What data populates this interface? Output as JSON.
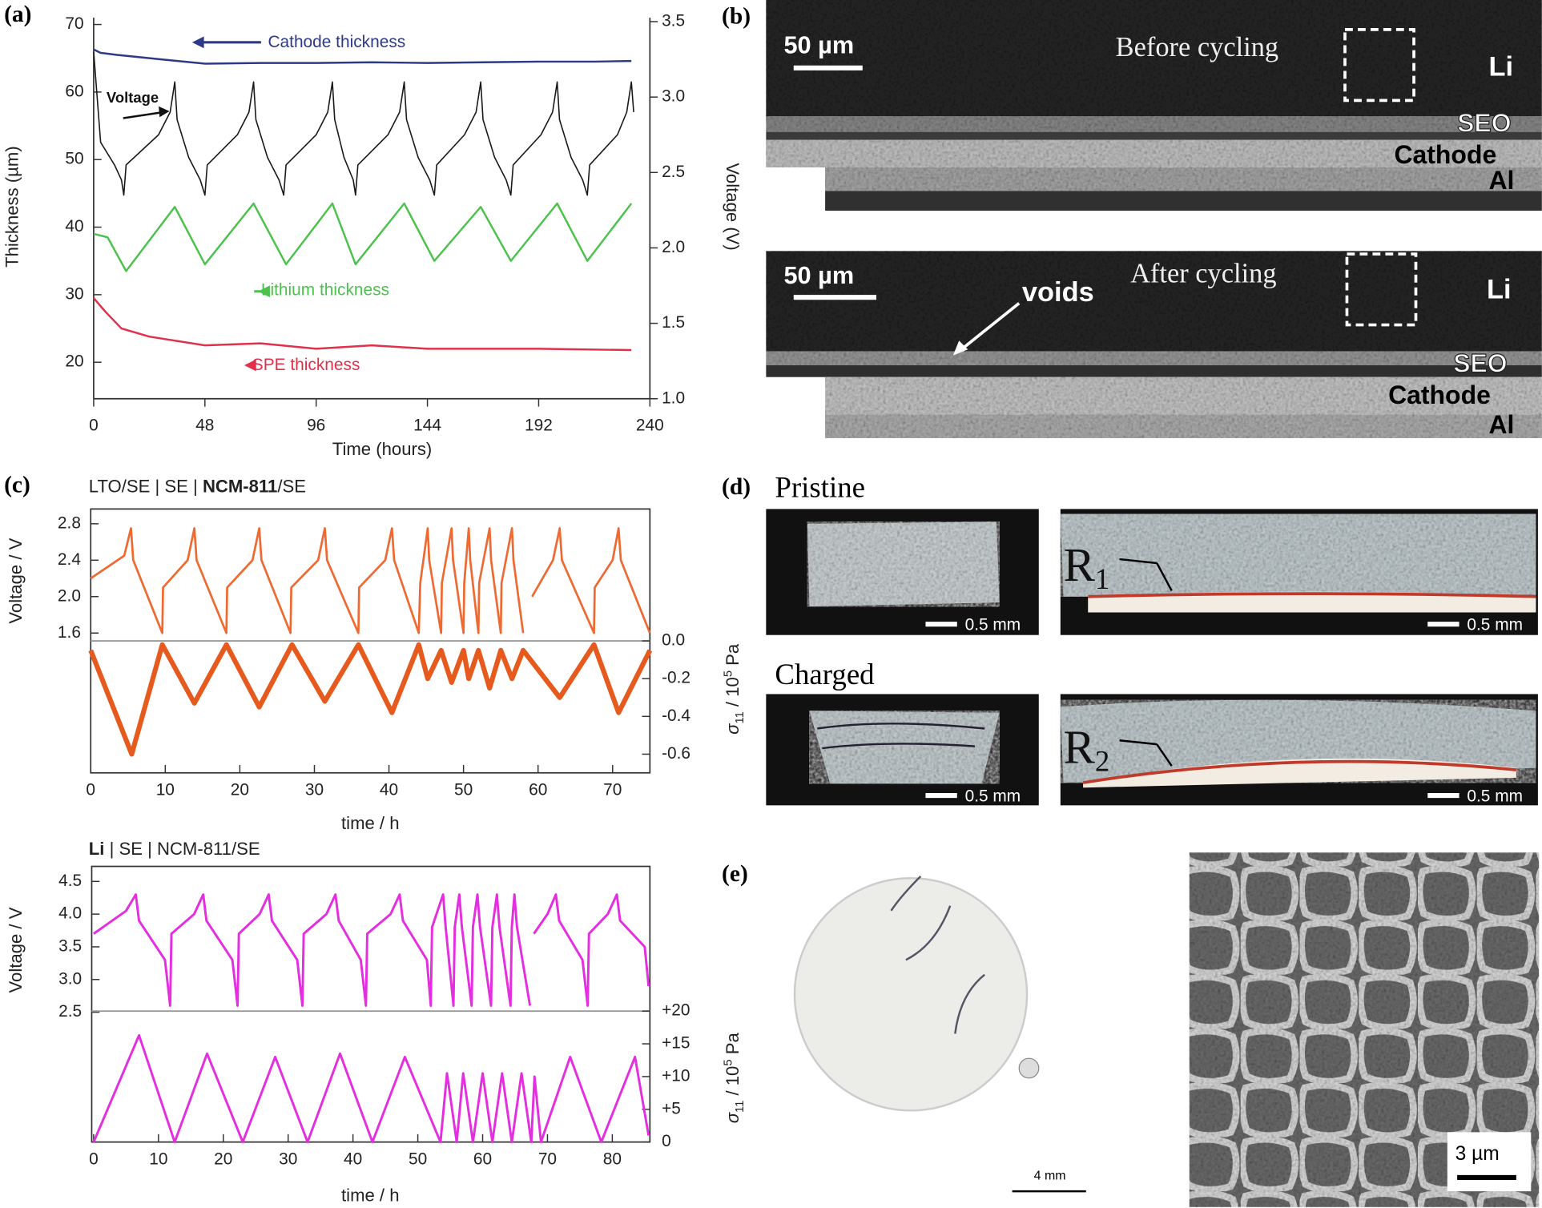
{
  "chart_data": [
    {
      "type": "line",
      "xlabel": "Time (hours)",
      "ylabel": "Thickness (µm)",
      "y2label": "Voltage (V)",
      "xlim": [
        0,
        240
      ],
      "xticks": [
        0,
        48,
        96,
        144,
        192,
        240
      ],
      "ylim": [
        14.6,
        71.0
      ],
      "yticks": [
        20,
        30,
        40,
        50,
        60,
        70
      ],
      "y2lim": [
        1.0,
        3.526
      ],
      "y2ticks": [
        {
          "value": 1.0,
          "label": "1.0"
        },
        1.5,
        {
          "value": 2.0,
          "label": "2.0"
        },
        2.5,
        {
          "value": 3.0,
          "label": "3.0"
        },
        3.5
      ],
      "series": [
        {
          "name": "Cathode thickness",
          "color": "#2e3a87",
          "x": [
            0,
            3,
            10,
            30,
            48,
            72,
            96,
            120,
            144,
            168,
            192,
            216,
            232
          ],
          "values": [
            66.3,
            65.8,
            65.5,
            64.8,
            64.2,
            64.3,
            64.3,
            64.4,
            64.3,
            64.4,
            64.5,
            64.5,
            64.6
          ]
        },
        {
          "name": "Voltage",
          "color": "#1a1a1a",
          "axis": "y2",
          "x": [
            0,
            3,
            9,
            12,
            13,
            14,
            28,
            33,
            35,
            36,
            41,
            46,
            48,
            49,
            62,
            67,
            69,
            70,
            75,
            80,
            82,
            83,
            96,
            101,
            103,
            104,
            108,
            112,
            113,
            114,
            127,
            132,
            134,
            135,
            140,
            145,
            147,
            148,
            160,
            165,
            167,
            168,
            173,
            178,
            180,
            181,
            193,
            198,
            200,
            201,
            206,
            211,
            213,
            214,
            226,
            230,
            232,
            233
          ],
          "values": [
            3.3,
            2.7,
            2.55,
            2.45,
            2.35,
            2.55,
            2.75,
            2.9,
            3.1,
            2.85,
            2.6,
            2.45,
            2.35,
            2.55,
            2.75,
            2.9,
            3.1,
            2.85,
            2.6,
            2.45,
            2.35,
            2.55,
            2.75,
            2.9,
            3.1,
            2.85,
            2.6,
            2.45,
            2.35,
            2.55,
            2.75,
            2.9,
            3.1,
            2.85,
            2.6,
            2.45,
            2.35,
            2.55,
            2.75,
            2.9,
            3.1,
            2.85,
            2.6,
            2.45,
            2.35,
            2.55,
            2.75,
            2.9,
            3.1,
            2.85,
            2.6,
            2.45,
            2.35,
            2.55,
            2.75,
            2.9,
            3.1,
            2.9
          ]
        },
        {
          "name": "Lithium thickness",
          "color": "#4cc24c",
          "x": [
            0,
            6,
            14,
            35,
            48,
            69,
            83,
            103,
            113,
            134,
            147,
            167,
            180,
            200,
            213,
            232
          ],
          "values": [
            39,
            38.5,
            33.5,
            43,
            34.5,
            43.5,
            34.5,
            43.5,
            34.5,
            43.5,
            35,
            43,
            35,
            43.5,
            35,
            43.5
          ]
        },
        {
          "name": "SPE thickness",
          "color": "#e0304a",
          "x": [
            0,
            5,
            12,
            24,
            48,
            72,
            96,
            120,
            144,
            192,
            232
          ],
          "values": [
            29.5,
            27.5,
            25,
            23.8,
            22.5,
            22.8,
            22,
            22.5,
            22,
            22,
            21.8
          ]
        }
      ]
    },
    {
      "type": "line",
      "title_parts": [
        "LTO/SE | SE | ",
        "NCM-811",
        "/SE"
      ],
      "xlabel": "time / h",
      "ylabel": "Voltage / V",
      "y2label_parts": [
        "σ",
        "11",
        " / 10",
        "5",
        " Pa"
      ],
      "xlim": [
        0,
        75.0
      ],
      "xticks": [
        0,
        10,
        20,
        30,
        40,
        50,
        60,
        70
      ],
      "ylim": [
        0.065,
        2.962
      ],
      "yticks": [
        1.6,
        {
          "value": 2.0,
          "label": "2.0"
        },
        2.4,
        2.8
      ],
      "y2lim": [
        -0.699,
        0.699
      ],
      "y2ticks": [
        {
          "value": 0,
          "label": "0.0"
        },
        -0.2,
        -0.4,
        -0.6
      ],
      "series": [
        {
          "color": "#ef6a32",
          "x": [
            0,
            4.5,
            5.4,
            5.7,
            9.6,
            9.7,
            13,
            13.9,
            14.2,
            18.2,
            18.3,
            21.7,
            22.6,
            22.9,
            26.8,
            26.9,
            30.5,
            31.4,
            31.7,
            35.9,
            36,
            39.5,
            40.4,
            40.7,
            44,
            44.2,
            45.2,
            45.4,
            47,
            47.1,
            48.4,
            48.6,
            50,
            50.1,
            50.7,
            50.9,
            52,
            52.1,
            53.5,
            53.7,
            55,
            55.1,
            56.5,
            56.7,
            58,
            58.5,
            59.2,
            62,
            62.9,
            63.2,
            67.5,
            67.6,
            70,
            70.8,
            71.1,
            75
          ],
          "values": [
            2.2,
            2.45,
            2.75,
            2.4,
            1.6,
            2.1,
            2.4,
            2.75,
            2.4,
            1.6,
            2.1,
            2.4,
            2.75,
            2.4,
            1.6,
            2.1,
            2.4,
            2.75,
            2.4,
            1.6,
            2.1,
            2.4,
            2.75,
            2.4,
            1.6,
            2.15,
            2.75,
            2.4,
            1.6,
            2.15,
            2.75,
            2.4,
            1.6,
            2.15,
            2.75,
            2.4,
            1.6,
            2.15,
            2.75,
            2.4,
            1.6,
            2.15,
            2.75,
            2.4,
            1.6,
            null,
            2.0,
            2.4,
            2.75,
            2.4,
            1.6,
            2.1,
            2.4,
            2.75,
            2.4,
            1.6
          ]
        },
        {
          "color": "#e65a1e",
          "axis": "y2",
          "x": [
            0,
            5.5,
            9.6,
            13.9,
            18.2,
            22.6,
            27,
            31.4,
            35.9,
            40.4,
            44,
            45.2,
            47,
            48.4,
            50,
            50.7,
            52,
            53.5,
            55,
            56.5,
            58,
            62.9,
            67.5,
            70.8,
            75
          ],
          "values": [
            -0.05,
            -0.6,
            -0.02,
            -0.33,
            -0.02,
            -0.35,
            -0.02,
            -0.32,
            -0.02,
            -0.38,
            -0.02,
            -0.2,
            -0.05,
            -0.22,
            -0.05,
            -0.2,
            -0.05,
            -0.25,
            -0.05,
            -0.2,
            -0.05,
            -0.3,
            -0.02,
            -0.38,
            -0.05
          ]
        }
      ]
    },
    {
      "type": "line",
      "title_parts": [
        "Li",
        " | SE | NCM-811/SE"
      ],
      "xlabel": "time / h",
      "ylabel": "Voltage / V",
      "y2label_parts": [
        "σ",
        "11",
        " / 10",
        "5",
        " Pa"
      ],
      "xlim": [
        -0.3,
        85.8
      ],
      "xticks": [
        0,
        10,
        20,
        30,
        40,
        50,
        60,
        70,
        80
      ],
      "ylim": [
        0.515,
        4.73
      ],
      "yticks": [
        2.5,
        {
          "value": 3.0,
          "label": "3.0"
        },
        3.5,
        {
          "value": 4.0,
          "label": "4.0"
        },
        4.5
      ],
      "y2lim": [
        0,
        42.1
      ],
      "y2ticks": [
        {
          "value": 20,
          "label": "+20"
        },
        {
          "value": 15,
          "label": "+15"
        },
        {
          "value": 10,
          "label": "+10"
        },
        {
          "value": 5,
          "label": "+5"
        },
        0
      ],
      "series": [
        {
          "color": "#e52ee0",
          "x": [
            0,
            5,
            6.5,
            7,
            11,
            11.8,
            12,
            15.5,
            16.9,
            17.4,
            21.4,
            22.2,
            22.4,
            25.6,
            27,
            27.5,
            31.4,
            32.2,
            32.4,
            35.9,
            37.3,
            37.8,
            41.2,
            42,
            42.2,
            45.8,
            47.2,
            47.7,
            51.4,
            52,
            52.2,
            53.9,
            54.3,
            55.5,
            55.7,
            56.4,
            56.8,
            58.3,
            58.5,
            59.2,
            59.6,
            61.3,
            61.5,
            62.2,
            62.6,
            64.3,
            64.5,
            64.9,
            65.3,
            67.3,
            67.6,
            67.9,
            70,
            71.3,
            71.8,
            75.4,
            76.2,
            76.4,
            79.3,
            80.7,
            81.2,
            85,
            85.6
          ],
          "values": [
            3.7,
            4.05,
            4.3,
            3.9,
            3.3,
            2.6,
            3.7,
            4.0,
            4.3,
            3.9,
            3.3,
            2.6,
            3.7,
            4.0,
            4.3,
            3.9,
            3.3,
            2.6,
            3.7,
            4.0,
            4.3,
            3.9,
            3.3,
            2.6,
            3.7,
            4.0,
            4.3,
            3.9,
            3.3,
            2.6,
            3.8,
            4.3,
            3.8,
            2.6,
            3.8,
            4.3,
            3.8,
            2.6,
            3.8,
            4.3,
            3.8,
            2.6,
            3.8,
            4.3,
            3.8,
            2.6,
            3.8,
            4.3,
            3.8,
            2.6,
            null,
            3.7,
            4.0,
            4.3,
            3.9,
            3.3,
            2.6,
            3.7,
            4.0,
            4.3,
            3.9,
            3.5,
            2.9
          ]
        },
        {
          "color": "#e52ee0",
          "axis": "y2",
          "x": [
            0,
            7,
            12.5,
            17.5,
            23,
            28,
            33,
            38,
            43,
            48,
            53.5,
            54.5,
            56,
            57,
            58.5,
            60,
            61.5,
            63,
            64.5,
            66,
            67.5,
            68,
            69,
            73.5,
            78.3,
            83.5,
            85.6
          ],
          "values": [
            0,
            16.3,
            0,
            13.5,
            0,
            13,
            0,
            13.5,
            0,
            13,
            0,
            10.5,
            0,
            10.5,
            0,
            10.5,
            0,
            10.5,
            0,
            10.5,
            0,
            10,
            0,
            13,
            0,
            13,
            1
          ]
        }
      ]
    }
  ],
  "panel_labels": {
    "a": "(a)",
    "b": "(b)",
    "c": "(c)",
    "d": "(d)",
    "e": "(e)"
  },
  "panel_b": {
    "top": {
      "scale": "50 µm",
      "title": "Before cycling",
      "layers": [
        "Li",
        "SEO",
        "Cathode",
        "Al"
      ]
    },
    "bottom": {
      "scale": "50 µm",
      "title": "After cycling",
      "annotation": "voids",
      "layers": [
        "Li",
        "SEO",
        "Cathode",
        "Al"
      ]
    }
  },
  "panel_d": {
    "pristine": {
      "title": "Pristine",
      "label": "R",
      "label_sub": "1",
      "scales": [
        "0.5 mm",
        "0.5 mm"
      ]
    },
    "charged": {
      "title": "Charged",
      "label": "R",
      "label_sub": "2",
      "scales": [
        "0.5 mm",
        "0.5 mm"
      ]
    }
  },
  "panel_e": {
    "scales": [
      "4 mm",
      "3 µm"
    ]
  }
}
